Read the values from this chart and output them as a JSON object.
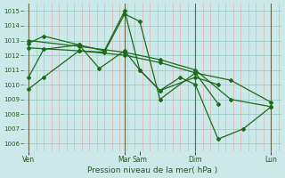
{
  "title": "Pression niveau de la mer( hPa )",
  "bg_color": "#cce8e8",
  "grid_color_h": "#99cccc",
  "grid_color_v": "#ddaaaa",
  "line_color": "#1a6b1a",
  "marker": "D",
  "markersize": 2.0,
  "linewidth": 0.9,
  "ylim": [
    1005.5,
    1015.5
  ],
  "yticks": [
    1006,
    1007,
    1008,
    1009,
    1010,
    1011,
    1012,
    1013,
    1014,
    1015
  ],
  "xlabel": "Pression niveau de la mer( hPa )",
  "xtick_labels": [
    "Ven",
    "Mar",
    "Sam",
    "Dim",
    "Lun"
  ],
  "xtick_positions": [
    0,
    38,
    44,
    66,
    96
  ],
  "vline_positions": [
    0,
    38,
    66,
    96
  ],
  "xlim": [
    -2,
    100
  ],
  "series": [
    {
      "x": [
        0,
        6,
        20,
        30,
        38,
        44,
        52,
        66,
        75
      ],
      "y": [
        1009.7,
        1010.5,
        1012.3,
        1012.2,
        1014.8,
        1014.3,
        1009.0,
        1010.8,
        1008.7
      ]
    },
    {
      "x": [
        0,
        6,
        20,
        30,
        38,
        44,
        52,
        66,
        75
      ],
      "y": [
        1012.8,
        1013.3,
        1012.7,
        1012.3,
        1015.0,
        1011.0,
        1009.6,
        1010.5,
        1010.0
      ]
    },
    {
      "x": [
        0,
        6,
        20,
        28,
        38,
        44,
        52,
        60,
        66,
        75,
        85,
        96
      ],
      "y": [
        1010.5,
        1012.4,
        1012.7,
        1011.1,
        1012.3,
        1011.0,
        1009.6,
        1010.5,
        1010.0,
        1006.3,
        1007.0,
        1008.5
      ]
    },
    {
      "x": [
        0,
        20,
        38,
        52,
        66,
        80,
        96
      ],
      "y": [
        1012.5,
        1012.3,
        1012.0,
        1011.5,
        1010.8,
        1010.3,
        1008.8
      ]
    },
    {
      "x": [
        0,
        20,
        38,
        52,
        66,
        80,
        96
      ],
      "y": [
        1013.0,
        1012.6,
        1012.2,
        1011.7,
        1011.0,
        1009.0,
        1008.5
      ]
    }
  ]
}
